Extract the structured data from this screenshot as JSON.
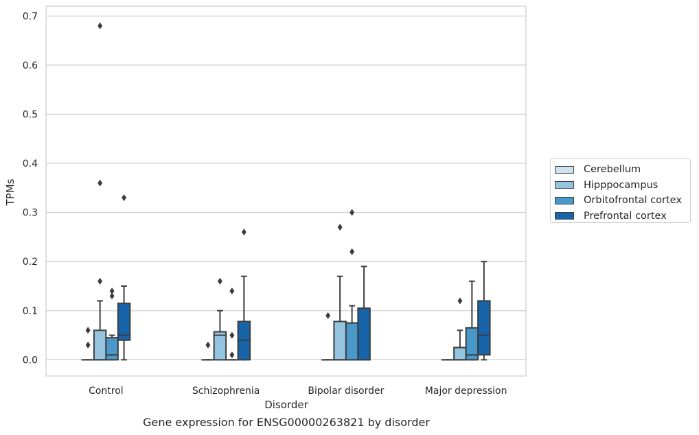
{
  "chart_data": {
    "type": "box",
    "title": "",
    "caption": "Gene expression for ENSG00000263821 by disorder",
    "xlabel": "Disorder",
    "ylabel": "TPMs",
    "ylim": [
      -0.033,
      0.72
    ],
    "yticks": [
      0.0,
      0.1,
      0.2,
      0.3,
      0.4,
      0.5,
      0.6,
      0.7
    ],
    "ytick_labels": [
      "0.0",
      "0.1",
      "0.2",
      "0.3",
      "0.4",
      "0.5",
      "0.6",
      "0.7"
    ],
    "grid": true,
    "legend_position": "right",
    "categories": [
      "Control",
      "Schizophrenia",
      "Bipolar disorder",
      "Major depression"
    ],
    "series": [
      {
        "name": "Cerebellum",
        "color": "#d0e1f2",
        "boxes": [
          {
            "q1": 0,
            "median": 0,
            "q3": 0,
            "whisker_low": 0,
            "whisker_high": 0,
            "outliers": [
              0.03,
              0.06
            ]
          },
          {
            "q1": 0,
            "median": 0,
            "q3": 0,
            "whisker_low": 0,
            "whisker_high": 0,
            "outliers": [
              0.03
            ]
          },
          {
            "q1": 0,
            "median": 0,
            "q3": 0,
            "whisker_low": 0,
            "whisker_high": 0,
            "outliers": [
              0.09
            ]
          },
          {
            "q1": 0,
            "median": 0,
            "q3": 0,
            "whisker_low": 0,
            "whisker_high": 0,
            "outliers": []
          }
        ]
      },
      {
        "name": "Hipppocampus",
        "color": "#94c4df",
        "boxes": [
          {
            "q1": 0,
            "median": 0,
            "q3": 0.06,
            "whisker_low": 0,
            "whisker_high": 0.12,
            "outliers": [
              0.16,
              0.36,
              0.68
            ]
          },
          {
            "q1": 0,
            "median": 0.05,
            "q3": 0.057,
            "whisker_low": 0,
            "whisker_high": 0.1,
            "outliers": [
              0.16
            ]
          },
          {
            "q1": 0,
            "median": 0,
            "q3": 0.078,
            "whisker_low": 0,
            "whisker_high": 0.17,
            "outliers": [
              0.27
            ]
          },
          {
            "q1": 0,
            "median": 0,
            "q3": 0.025,
            "whisker_low": 0,
            "whisker_high": 0.06,
            "outliers": [
              0.12
            ]
          }
        ]
      },
      {
        "name": "Orbitofrontal cortex",
        "color": "#4a98c9",
        "boxes": [
          {
            "q1": 0,
            "median": 0.01,
            "q3": 0.045,
            "whisker_low": 0,
            "whisker_high": 0.05,
            "outliers": [
              0.13,
              0.14
            ]
          },
          {
            "q1": 0,
            "median": 0,
            "q3": 0,
            "whisker_low": 0,
            "whisker_high": 0,
            "outliers": [
              0.01,
              0.05,
              0.14
            ]
          },
          {
            "q1": 0,
            "median": 0,
            "q3": 0.075,
            "whisker_low": 0,
            "whisker_high": 0.11,
            "outliers": [
              0.22,
              0.3
            ]
          },
          {
            "q1": 0,
            "median": 0.01,
            "q3": 0.065,
            "whisker_low": 0,
            "whisker_high": 0.16,
            "outliers": []
          }
        ]
      },
      {
        "name": "Prefrontal cortex",
        "color": "#1764ab",
        "boxes": [
          {
            "q1": 0.04,
            "median": 0.05,
            "q3": 0.115,
            "whisker_low": 0,
            "whisker_high": 0.15,
            "outliers": [
              0.33
            ]
          },
          {
            "q1": 0,
            "median": 0.04,
            "q3": 0.078,
            "whisker_low": 0,
            "whisker_high": 0.17,
            "outliers": [
              0.26
            ]
          },
          {
            "q1": 0,
            "median": 0,
            "q3": 0.105,
            "whisker_low": 0,
            "whisker_high": 0.19,
            "outliers": []
          },
          {
            "q1": 0.01,
            "median": 0.05,
            "q3": 0.12,
            "whisker_low": 0,
            "whisker_high": 0.2,
            "outliers": []
          }
        ]
      }
    ]
  },
  "colors": {
    "grid": "#cccccc",
    "frame": "#cccccc",
    "box_edge": "#3d3d3d",
    "text": "#262626"
  }
}
